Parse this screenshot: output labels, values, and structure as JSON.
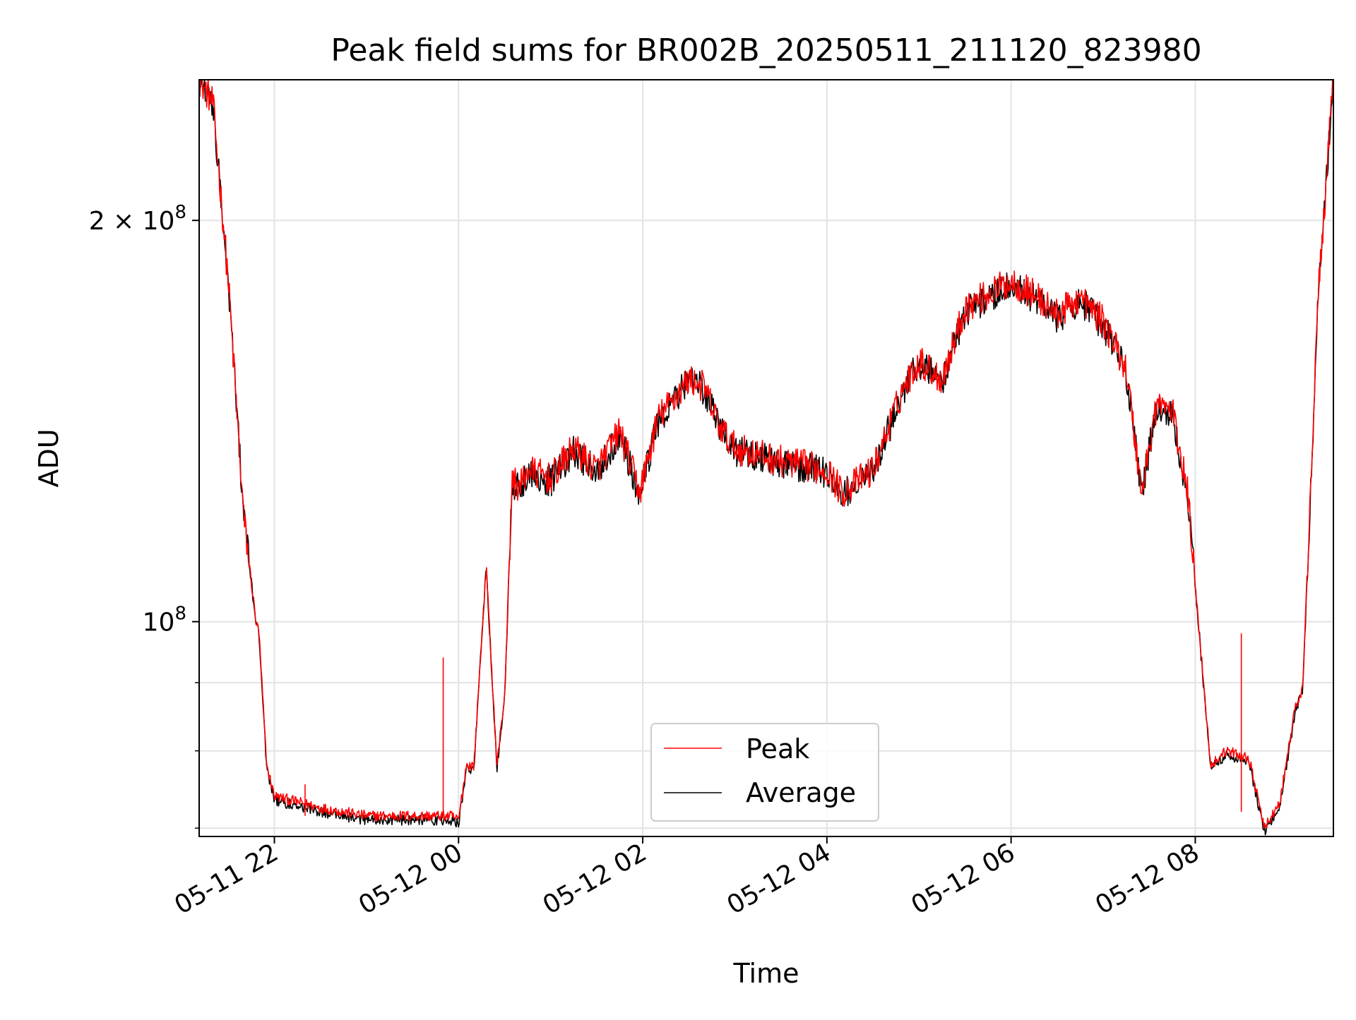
{
  "chart_data": {
    "type": "line",
    "title": "Peak field sums for BR002B_20250511_211120_823980",
    "xlabel": "Time",
    "ylabel": "ADU",
    "y_scale": "log",
    "grid": true,
    "legend_position": "bottom-center",
    "xlim": [
      "2025-05-11 21:11",
      "2025-05-12 09:30"
    ],
    "ylim": [
      69000000,
      255000000
    ],
    "x_ticks": [
      {
        "value": "2025-05-11 22:00",
        "label": "05-11 22"
      },
      {
        "value": "2025-05-12 00:00",
        "label": "05-12 00"
      },
      {
        "value": "2025-05-12 02:00",
        "label": "05-12 02"
      },
      {
        "value": "2025-05-12 04:00",
        "label": "05-12 04"
      },
      {
        "value": "2025-05-12 06:00",
        "label": "05-12 06"
      },
      {
        "value": "2025-05-12 08:00",
        "label": "05-12 08"
      }
    ],
    "y_major_ticks": [
      {
        "value": 100000000,
        "label": "10^8",
        "base": "10",
        "exp": "8",
        "prefix": ""
      },
      {
        "value": 200000000,
        "label": "2×10^8",
        "base": "10",
        "exp": "8",
        "prefix": "2 × "
      }
    ],
    "y_minor_ticks": [
      90000000,
      80000000,
      70000000,
      300000000
    ],
    "x": [
      "2025-05-11 21:11",
      "2025-05-11 21:20",
      "2025-05-11 21:30",
      "2025-05-11 21:40",
      "2025-05-11 21:48",
      "2025-05-11 21:50",
      "2025-05-11 21:55",
      "2025-05-11 22:00",
      "2025-05-11 22:30",
      "2025-05-11 23:00",
      "2025-05-11 23:30",
      "2025-05-11 23:55",
      "2025-05-12 00:00",
      "2025-05-12 00:05",
      "2025-05-12 00:10",
      "2025-05-12 00:18",
      "2025-05-12 00:25",
      "2025-05-12 00:30",
      "2025-05-12 00:35",
      "2025-05-12 00:40",
      "2025-05-12 00:45",
      "2025-05-12 01:00",
      "2025-05-12 01:15",
      "2025-05-12 01:30",
      "2025-05-12 01:45",
      "2025-05-12 01:58",
      "2025-05-12 02:10",
      "2025-05-12 02:30",
      "2025-05-12 02:40",
      "2025-05-12 02:50",
      "2025-05-12 03:00",
      "2025-05-12 03:30",
      "2025-05-12 04:00",
      "2025-05-12 04:10",
      "2025-05-12 04:30",
      "2025-05-12 04:50",
      "2025-05-12 05:00",
      "2025-05-12 05:15",
      "2025-05-12 05:30",
      "2025-05-12 05:45",
      "2025-05-12 06:00",
      "2025-05-12 06:15",
      "2025-05-12 06:30",
      "2025-05-12 06:45",
      "2025-05-12 07:00",
      "2025-05-12 07:15",
      "2025-05-12 07:25",
      "2025-05-12 07:35",
      "2025-05-12 07:45",
      "2025-05-12 07:55",
      "2025-05-12 08:10",
      "2025-05-12 08:20",
      "2025-05-12 08:35",
      "2025-05-12 08:45",
      "2025-05-12 08:55",
      "2025-05-12 09:05",
      "2025-05-12 09:10",
      "2025-05-12 09:20",
      "2025-05-12 09:30"
    ],
    "series": [
      {
        "name": "Peak",
        "color": "#ff0000",
        "values": [
          255000000,
          245000000,
          180000000,
          120000000,
          100000000,
          98000000,
          78000000,
          74000000,
          72500000,
          71500000,
          71500000,
          71500000,
          71000000,
          78000000,
          78000000,
          110000000,
          78000000,
          88000000,
          128000000,
          126000000,
          130000000,
          128000000,
          135000000,
          130000000,
          139000000,
          125000000,
          142000000,
          152000000,
          150000000,
          140000000,
          135000000,
          132000000,
          130000000,
          125000000,
          130000000,
          150000000,
          157000000,
          152000000,
          172000000,
          176000000,
          180000000,
          176000000,
          170000000,
          175000000,
          168000000,
          155000000,
          125000000,
          146000000,
          144000000,
          125000000,
          78000000,
          80000000,
          79000000,
          70000000,
          73000000,
          86000000,
          89000000,
          175000000,
          255000000
        ]
      },
      {
        "name": "Average",
        "color": "#000000",
        "values": [
          255000000,
          245000000,
          180000000,
          120000000,
          100000000,
          98000000,
          77500000,
          73500000,
          72000000,
          71000000,
          71000000,
          71000000,
          70500000,
          77500000,
          77500000,
          110000000,
          77500000,
          87500000,
          127500000,
          125500000,
          129500000,
          127500000,
          134500000,
          129500000,
          138500000,
          124500000,
          141500000,
          151500000,
          149500000,
          139500000,
          134500000,
          131500000,
          129500000,
          124500000,
          129500000,
          149500000,
          156500000,
          151500000,
          171000000,
          175000000,
          179000000,
          175000000,
          169000000,
          174000000,
          167000000,
          154000000,
          124500000,
          145500000,
          143500000,
          124500000,
          77500000,
          79500000,
          78500000,
          69500000,
          72500000,
          85500000,
          88500000,
          174500000,
          255000000
        ]
      }
    ],
    "annotations_spikes": [
      {
        "series": "Peak",
        "x": "2025-05-11 22:20",
        "y": 75500000
      },
      {
        "series": "Peak",
        "x": "2025-05-11 23:50",
        "y": 94000000
      },
      {
        "series": "Peak",
        "x": "2025-05-12 08:30",
        "y": 98000000
      }
    ]
  }
}
